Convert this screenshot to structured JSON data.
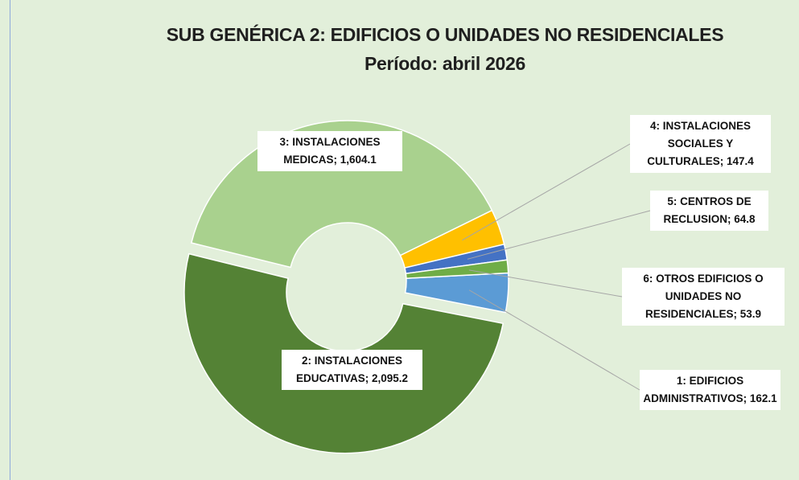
{
  "chart_data": {
    "type": "donut",
    "title": "SUB GENÉRICA 2: EDIFICIOS O UNIDADES NO RESIDENCIALES",
    "subtitle": "Período: abril 2026",
    "categories": [
      "1: EDIFICIOS ADMINISTRATIVOS",
      "2: INSTALACIONES EDUCATIVAS",
      "3: INSTALACIONES MEDICAS",
      "4: INSTALACIONES SOCIALES Y CULTURALES",
      "5: CENTROS DE RECLUSION",
      "6: OTROS EDIFICIOS O UNIDADES NO RESIDENCIALES"
    ],
    "values": [
      162.1,
      2095.2,
      1604.1,
      147.4,
      64.8,
      53.9
    ],
    "value_labels": [
      "162.1",
      "2,095.2",
      "1,604.1",
      "147.4",
      "64.8",
      "53.9"
    ],
    "label_separator": ";",
    "colors": [
      "#5b9bd5",
      "#548235",
      "#a9d18e",
      "#ffc000",
      "#4472c4",
      "#70ad47"
    ]
  }
}
